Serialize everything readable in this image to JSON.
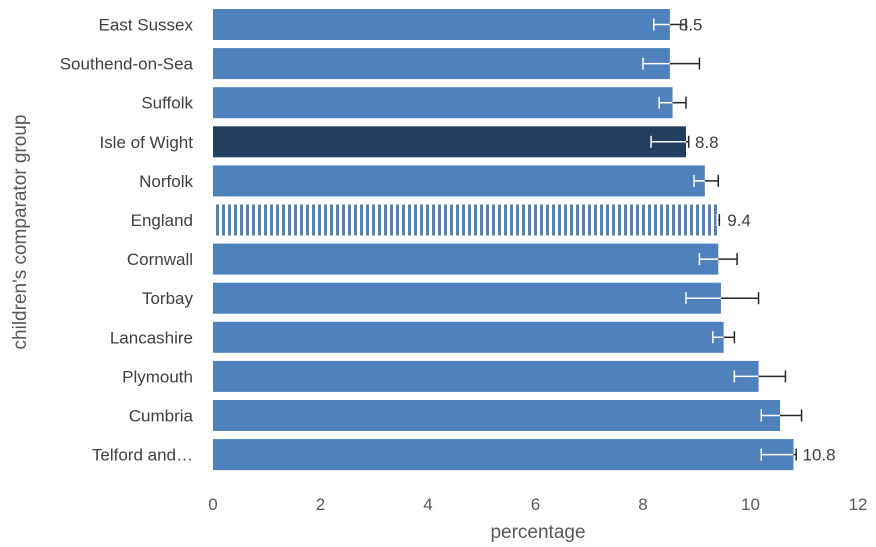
{
  "chart_data": {
    "type": "bar",
    "orientation": "horizontal",
    "title": "",
    "xlabel": "percentage",
    "ylabel": "children's comparator group",
    "xlim": [
      0,
      12
    ],
    "xticks": [
      "0",
      "2",
      "4",
      "6",
      "8",
      "10",
      "12"
    ],
    "grid": false,
    "legend": "none",
    "colors": {
      "default": "#4f81bd",
      "highlight": "#243f60",
      "england_stripe": "#4f81bd",
      "error_bar": "#262626",
      "error_bar_inside": "#ffffff"
    },
    "bars": [
      {
        "category": "East Sussex",
        "value": 8.5,
        "lower": 8.2,
        "upper": 8.8,
        "label": "8.5",
        "style": "default"
      },
      {
        "category": "Southend-on-Sea",
        "value": 8.5,
        "lower": 8.0,
        "upper": 9.05,
        "label": "",
        "style": "default"
      },
      {
        "category": "Suffolk",
        "value": 8.55,
        "lower": 8.3,
        "upper": 8.8,
        "label": "",
        "style": "default"
      },
      {
        "category": "Isle of Wight",
        "value": 8.8,
        "lower": 8.15,
        "upper": 8.85,
        "label": "8.8",
        "style": "highlight"
      },
      {
        "category": "Norfolk",
        "value": 9.15,
        "lower": 8.95,
        "upper": 9.4,
        "label": "",
        "style": "default"
      },
      {
        "category": "England",
        "value": 9.4,
        "lower": 9.38,
        "upper": 9.42,
        "label": "9.4",
        "style": "england"
      },
      {
        "category": "Cornwall",
        "value": 9.4,
        "lower": 9.05,
        "upper": 9.75,
        "label": "",
        "style": "default"
      },
      {
        "category": "Torbay",
        "value": 9.45,
        "lower": 8.8,
        "upper": 10.15,
        "label": "",
        "style": "default"
      },
      {
        "category": "Lancashire",
        "value": 9.5,
        "lower": 9.3,
        "upper": 9.7,
        "label": "",
        "style": "default"
      },
      {
        "category": "Plymouth",
        "value": 10.15,
        "lower": 9.7,
        "upper": 10.65,
        "label": "",
        "style": "default"
      },
      {
        "category": "Cumbria",
        "value": 10.55,
        "lower": 10.2,
        "upper": 10.95,
        "label": "",
        "style": "default"
      },
      {
        "category": "Telford and…",
        "value": 10.8,
        "lower": 10.2,
        "upper": 10.85,
        "label": "10.8",
        "style": "default"
      }
    ]
  }
}
